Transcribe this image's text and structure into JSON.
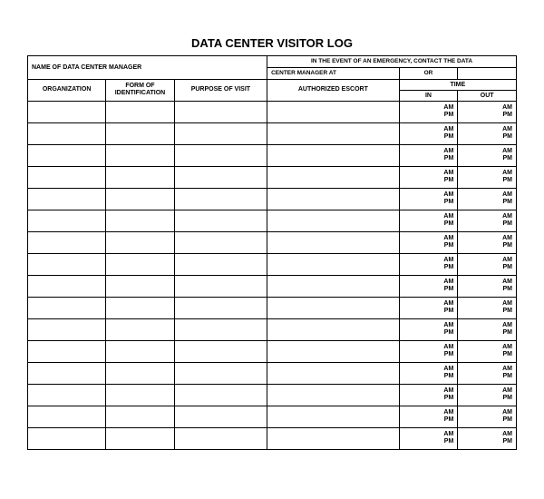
{
  "title": "DATA CENTER VISITOR LOG",
  "header_left": "NAME OF DATA CENTER MANAGER",
  "header_right_line1": "IN THE EVENT OF AN EMERGENCY, CONTACT THE DATA",
  "header_right_line2a": "CENTER MANAGER AT",
  "header_right_or": "OR",
  "columns": {
    "organization": "ORGANIZATION",
    "form_of_id": "FORM OF\nIDENTIFICATION",
    "purpose": "PURPOSE OF VISIT",
    "escort": "AUTHORIZED ESCORT",
    "time": "TIME",
    "time_in": "IN",
    "time_out": "OUT"
  },
  "ampm": "AM\nPM",
  "row_count": 16,
  "styling": {
    "border_color": "#000000",
    "background_color": "#ffffff",
    "title_fontsize": 13,
    "header_fontsize": 7,
    "col_widths_pct": [
      16,
      14,
      19,
      27,
      12,
      12
    ]
  }
}
